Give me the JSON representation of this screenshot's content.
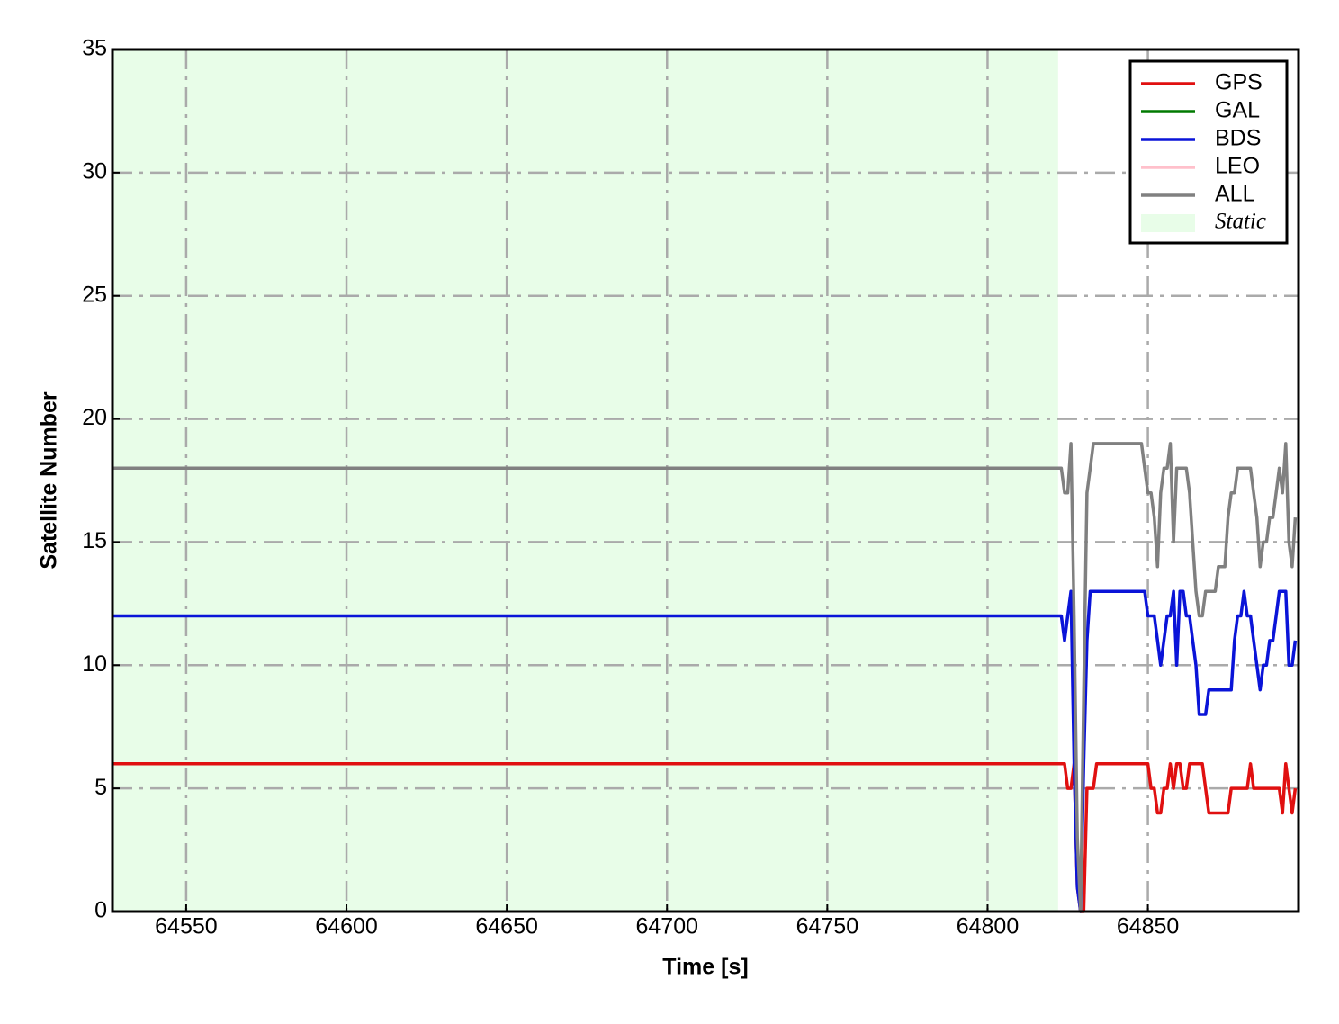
{
  "chart_data": {
    "type": "line",
    "xlabel": "Time [s]",
    "ylabel": "Satellite Number",
    "xlim": [
      64527,
      64897
    ],
    "ylim": [
      0,
      35
    ],
    "xticks": [
      64550,
      64600,
      64650,
      64700,
      64750,
      64800,
      64850
    ],
    "yticks": [
      0,
      5,
      10,
      15,
      20,
      25,
      30,
      35
    ],
    "grid": true,
    "legend": "upper right",
    "shade": {
      "label": "Static",
      "x0": 64527,
      "x1": 64822,
      "color": "#e8fde8"
    },
    "x": [
      64527,
      64822,
      64823,
      64824,
      64825,
      64826,
      64827,
      64828,
      64829,
      64830,
      64831,
      64832,
      64833,
      64834,
      64835,
      64836,
      64837,
      64838,
      64839,
      64840,
      64841,
      64842,
      64843,
      64844,
      64845,
      64846,
      64847,
      64848,
      64849,
      64850,
      64851,
      64852,
      64853,
      64854,
      64855,
      64856,
      64857,
      64858,
      64859,
      64860,
      64861,
      64862,
      64863,
      64864,
      64865,
      64866,
      64867,
      64868,
      64869,
      64870,
      64871,
      64872,
      64873,
      64874,
      64875,
      64876,
      64877,
      64878,
      64879,
      64880,
      64881,
      64882,
      64883,
      64884,
      64885,
      64886,
      64887,
      64888,
      64889,
      64890,
      64891,
      64892,
      64893,
      64894,
      64895,
      64896
    ],
    "series": [
      {
        "name": "GPS",
        "color": "#e01010",
        "values": [
          6,
          6,
          6,
          6,
          5,
          5,
          6,
          1,
          0,
          0,
          5,
          5,
          5,
          6,
          6,
          6,
          6,
          6,
          6,
          6,
          6,
          6,
          6,
          6,
          6,
          6,
          6,
          6,
          6,
          6,
          5,
          5,
          4,
          4,
          5,
          5,
          6,
          5,
          6,
          6,
          5,
          5,
          6,
          6,
          6,
          6,
          6,
          5,
          4,
          4,
          4,
          4,
          4,
          4,
          4,
          5,
          5,
          5,
          5,
          5,
          5,
          6,
          5,
          5,
          5,
          5,
          5,
          5,
          5,
          5,
          5,
          4,
          6,
          5,
          4,
          5
        ]
      },
      {
        "name": "GAL",
        "color": "#007a00",
        "values": [
          null,
          null,
          null,
          null,
          null,
          null,
          null,
          null,
          null,
          null,
          null,
          null,
          null,
          null,
          null,
          null,
          null,
          null,
          null,
          null,
          null,
          null,
          null,
          null,
          null,
          null,
          null,
          null,
          null,
          null,
          null,
          null,
          null,
          null,
          null,
          null,
          null,
          null,
          null,
          null,
          null,
          null,
          null,
          null,
          null,
          null,
          null,
          null,
          null,
          null,
          null,
          null,
          null,
          null,
          null,
          null,
          null,
          null,
          null,
          null,
          null,
          null,
          null,
          null,
          null,
          null,
          null,
          null,
          null,
          null,
          null,
          null,
          null,
          null,
          null,
          null
        ]
      },
      {
        "name": "BDS",
        "color": "#0a14d8",
        "values": [
          12,
          12,
          12,
          11,
          12,
          13,
          6,
          1,
          0,
          6,
          11,
          13,
          13,
          13,
          13,
          13,
          13,
          13,
          13,
          13,
          13,
          13,
          13,
          13,
          13,
          13,
          13,
          13,
          13,
          12,
          12,
          12,
          11,
          10,
          11,
          12,
          12,
          13,
          10,
          13,
          13,
          12,
          12,
          11,
          10,
          8,
          8,
          8,
          9,
          9,
          9,
          9,
          9,
          9,
          9,
          9,
          11,
          12,
          12,
          13,
          12,
          12,
          11,
          10,
          9,
          10,
          10,
          11,
          11,
          12,
          13,
          13,
          13,
          10,
          10,
          11
        ]
      },
      {
        "name": "LEO",
        "color": "#ffc0cb",
        "values": [
          null,
          null,
          null,
          null,
          null,
          null,
          null,
          null,
          null,
          null,
          null,
          null,
          null,
          null,
          null,
          null,
          null,
          null,
          null,
          null,
          null,
          null,
          null,
          null,
          null,
          null,
          null,
          null,
          null,
          null,
          null,
          null,
          null,
          null,
          null,
          null,
          null,
          null,
          null,
          null,
          null,
          null,
          null,
          null,
          null,
          null,
          null,
          null,
          null,
          null,
          null,
          null,
          null,
          null,
          null,
          null,
          null,
          null,
          null,
          null,
          null,
          null,
          null,
          null,
          null,
          null,
          null,
          null,
          null,
          null,
          null,
          null,
          null,
          null,
          null,
          null
        ]
      },
      {
        "name": "ALL",
        "color": "#808080",
        "values": [
          18,
          18,
          18,
          17,
          17,
          19,
          12,
          3,
          0,
          9,
          17,
          18,
          19,
          19,
          19,
          19,
          19,
          19,
          19,
          19,
          19,
          19,
          19,
          19,
          19,
          19,
          19,
          19,
          18,
          17,
          17,
          16,
          14,
          17,
          18,
          18,
          19,
          15,
          18,
          18,
          18,
          18,
          17,
          15,
          13,
          12,
          12,
          13,
          13,
          13,
          13,
          14,
          14,
          14,
          16,
          17,
          17,
          18,
          18,
          18,
          18,
          18,
          17,
          16,
          14,
          15,
          15,
          16,
          16,
          17,
          18,
          17,
          19,
          15,
          14,
          16
        ]
      }
    ]
  }
}
